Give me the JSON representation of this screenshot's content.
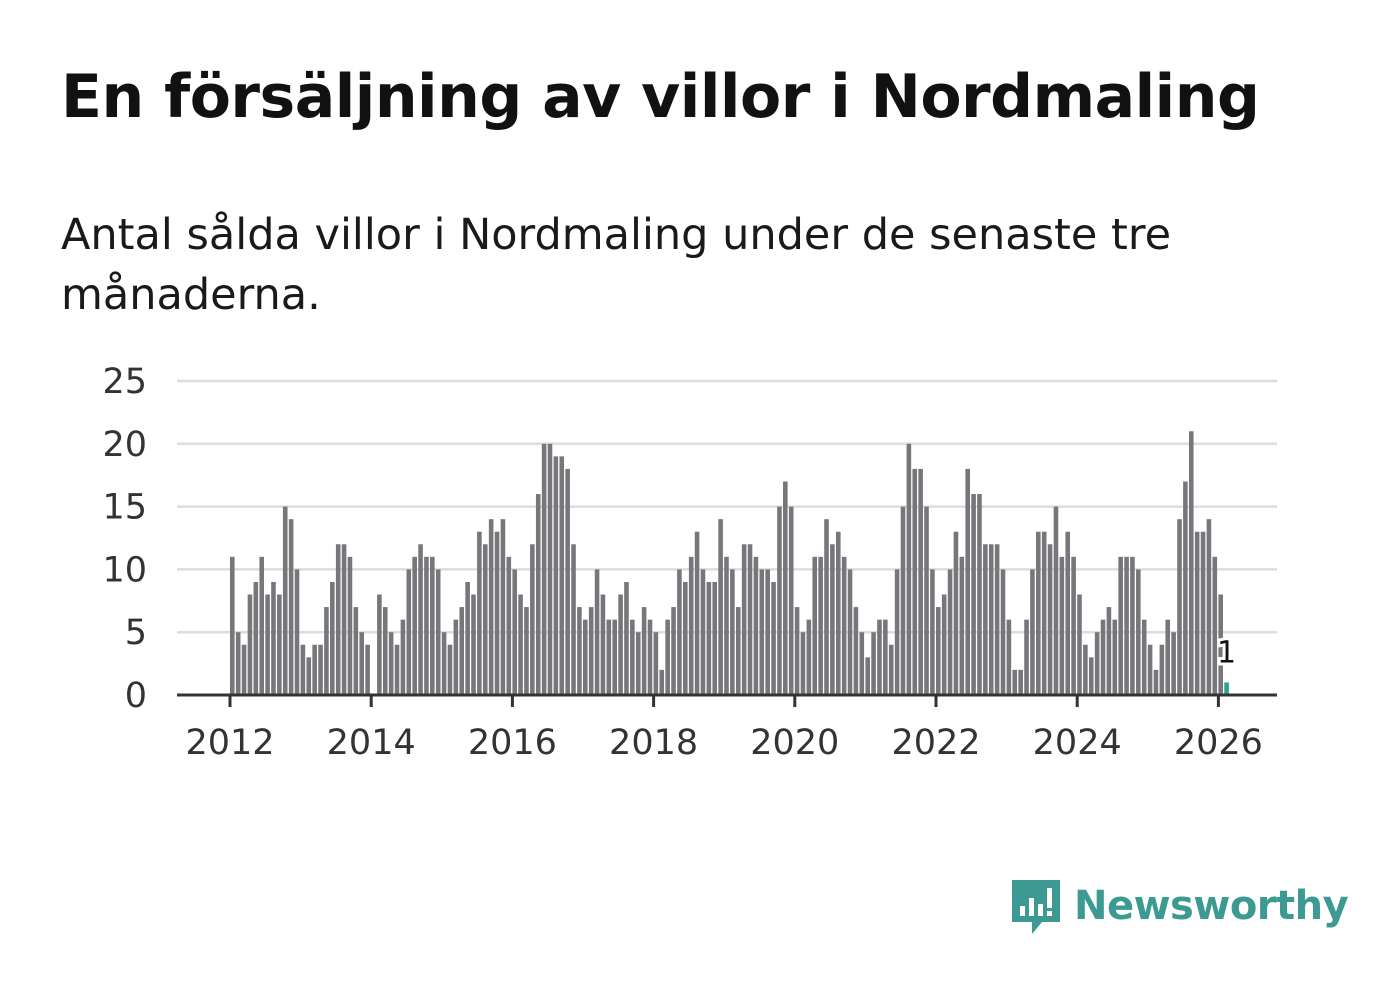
{
  "title": "En försäljning av villor i Nordmaling",
  "subtitle": "Antal sålda villor i Nordmaling under de senaste tre månaderna.",
  "brand": {
    "name": "Newsworthy",
    "icon": "newsworthy-logo-icon",
    "color": "#3d9a93"
  },
  "chart_data": {
    "type": "bar",
    "title": "En försäljning av villor i Nordmaling",
    "xlabel": "",
    "ylabel": "",
    "ylim": [
      0,
      25
    ],
    "yticks": [
      0,
      5,
      10,
      15,
      20,
      25
    ],
    "xticks": [
      "2012",
      "2014",
      "2016",
      "2018",
      "2020",
      "2022",
      "2024",
      "2026"
    ],
    "start": "2012-01",
    "bar_color": "#77777b",
    "highlight_color": "#2aa198",
    "highlight_label": "1",
    "grid": true,
    "values": [
      11,
      5,
      4,
      8,
      9,
      11,
      8,
      9,
      8,
      15,
      14,
      10,
      4,
      3,
      4,
      4,
      7,
      9,
      12,
      12,
      11,
      7,
      5,
      4,
      0,
      8,
      7,
      5,
      4,
      6,
      10,
      11,
      12,
      11,
      11,
      10,
      5,
      4,
      6,
      7,
      9,
      8,
      13,
      12,
      14,
      13,
      14,
      11,
      10,
      8,
      7,
      12,
      16,
      20,
      20,
      19,
      19,
      18,
      12,
      7,
      6,
      7,
      10,
      8,
      6,
      6,
      8,
      9,
      6,
      5,
      7,
      6,
      5,
      2,
      6,
      7,
      10,
      9,
      11,
      13,
      10,
      9,
      9,
      14,
      11,
      10,
      7,
      12,
      12,
      11,
      10,
      10,
      9,
      15,
      17,
      15,
      7,
      5,
      6,
      11,
      11,
      14,
      12,
      13,
      11,
      10,
      7,
      5,
      3,
      5,
      6,
      6,
      4,
      10,
      15,
      20,
      18,
      18,
      15,
      10,
      7,
      8,
      10,
      13,
      11,
      18,
      16,
      16,
      12,
      12,
      12,
      10,
      6,
      2,
      2,
      6,
      10,
      13,
      13,
      12,
      15,
      11,
      13,
      11,
      8,
      4,
      3,
      5,
      6,
      7,
      6,
      11,
      11,
      11,
      10,
      6,
      4,
      2,
      4,
      6,
      5,
      14,
      17,
      21,
      13,
      13,
      14,
      11,
      8,
      1
    ]
  }
}
